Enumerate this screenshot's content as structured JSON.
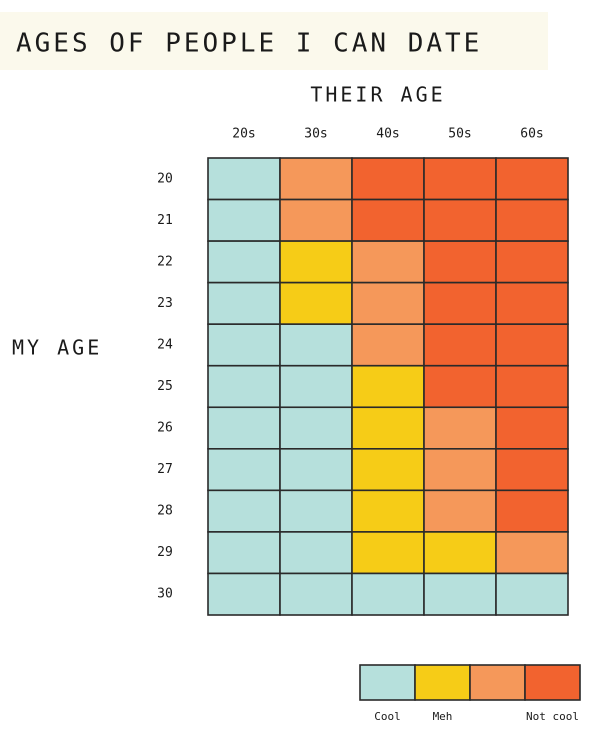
{
  "chart_data": {
    "type": "heatmap",
    "title": "AGES OF PEOPLE I CAN DATE",
    "x_label": "THEIR AGE",
    "y_label": "MY AGE",
    "x_categories": [
      "20s",
      "30s",
      "40s",
      "50s",
      "60s"
    ],
    "y_categories": [
      "20",
      "21",
      "22",
      "23",
      "24",
      "25",
      "26",
      "27",
      "28",
      "29",
      "30"
    ],
    "values": [
      [
        0,
        2,
        3,
        3,
        3
      ],
      [
        0,
        2,
        3,
        3,
        3
      ],
      [
        0,
        1,
        2,
        3,
        3
      ],
      [
        0,
        1,
        2,
        3,
        3
      ],
      [
        0,
        0,
        2,
        3,
        3
      ],
      [
        0,
        0,
        1,
        3,
        3
      ],
      [
        0,
        0,
        1,
        2,
        3
      ],
      [
        0,
        0,
        1,
        2,
        3
      ],
      [
        0,
        0,
        1,
        2,
        3
      ],
      [
        0,
        0,
        1,
        1,
        2
      ],
      [
        0,
        0,
        0,
        0,
        0
      ]
    ],
    "legend": {
      "colors": [
        "#b6e0dc",
        "#f6cc17",
        "#f5985a",
        "#f2632f"
      ],
      "labels": [
        "Cool",
        "Meh",
        null,
        "Not cool"
      ]
    }
  }
}
